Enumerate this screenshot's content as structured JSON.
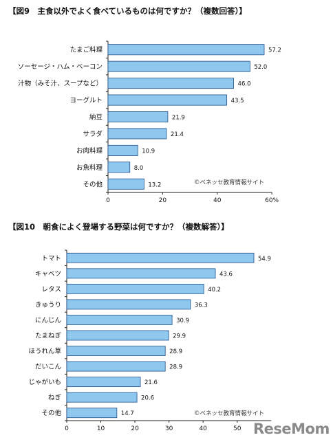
{
  "chart_data": [
    {
      "type": "bar",
      "orientation": "horizontal",
      "title": "【図9　主食以外でよく食べているものは何ですか？（複数回答）】",
      "categories": [
        "たまご料理",
        "ソーセージ・ハム・ベーコン",
        "汁物（みそ汁、スープなど）",
        "ヨーグルト",
        "納豆",
        "サラダ",
        "お肉料理",
        "お魚料理",
        "その他"
      ],
      "values": [
        57.2,
        52.0,
        46.0,
        43.5,
        21.9,
        21.4,
        10.9,
        8.0,
        13.2
      ],
      "value_labels": [
        "57.2",
        "52.0",
        "46.0",
        "43.5",
        "21.9",
        "21.4",
        "10.9",
        "8.0",
        "13.2"
      ],
      "xlim": [
        0,
        60
      ],
      "ticks": [
        "0",
        "20",
        "40",
        "60%"
      ],
      "tick_values": [
        0,
        20,
        40,
        60
      ],
      "credit": "©ベネッセ教育情報サイト",
      "colors": {
        "bar_fill": "#8fc8ee",
        "bar_stroke": "#1f4e8a"
      }
    },
    {
      "type": "bar",
      "orientation": "horizontal",
      "title": "【図10　朝食によく登場する野菜は何ですか？（複数解答）】",
      "categories": [
        "トマト",
        "キャベツ",
        "レタス",
        "きゅうり",
        "にんじん",
        "たまねぎ",
        "ほうれん草",
        "だいこん",
        "じゃがいも",
        "ねぎ",
        "その他"
      ],
      "values": [
        54.9,
        43.6,
        40.2,
        36.3,
        30.9,
        29.9,
        28.9,
        28.9,
        21.6,
        20.6,
        14.7
      ],
      "value_labels": [
        "54.9",
        "43.6",
        "40.2",
        "36.3",
        "30.9",
        "29.9",
        "28.9",
        "28.9",
        "21.6",
        "20.6",
        "14.7"
      ],
      "xlim": [
        0,
        60
      ],
      "ticks": [
        "0",
        "10",
        "20",
        "30",
        "40",
        "50"
      ],
      "tick_values": [
        0,
        10,
        20,
        30,
        40,
        50
      ],
      "credit": "©ベネッセ教育情報サイト",
      "colors": {
        "bar_fill": "#8fc8ee",
        "bar_stroke": "#1f4e8a"
      }
    }
  ],
  "logo": {
    "text": "ReseMom",
    "color": "#8a8a8a"
  }
}
